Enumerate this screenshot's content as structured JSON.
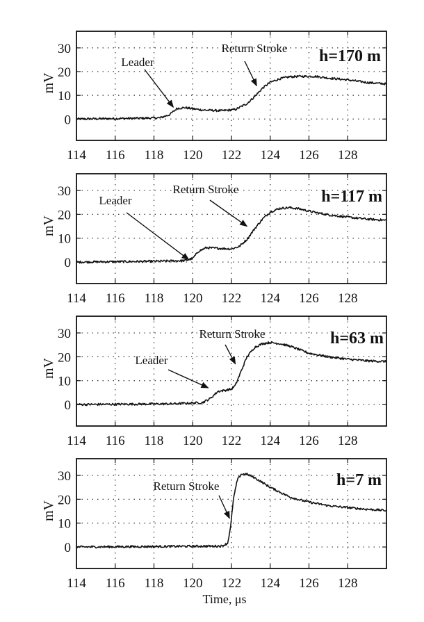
{
  "chart_data": [
    {
      "type": "line",
      "label": "h=170 m",
      "ylabel": "mV",
      "xlim": [
        114,
        130
      ],
      "ylim": [
        -9,
        37
      ],
      "x_ticks": [
        114,
        116,
        118,
        120,
        122,
        124,
        126,
        128
      ],
      "y_ticks": [
        0,
        10,
        20,
        30
      ],
      "grid": true,
      "series": [
        {
          "x": [
            114,
            117,
            118.3,
            118.8,
            119.2,
            119.6,
            120.5,
            121.5,
            122.2,
            122.8,
            123.2,
            123.6,
            124,
            124.5,
            125,
            125.5,
            126.3,
            127,
            128,
            129,
            130
          ],
          "y": [
            0,
            0.3,
            0.5,
            1.8,
            4.5,
            4.8,
            3.8,
            3.5,
            4,
            6.5,
            9.5,
            13,
            15.5,
            17,
            17.8,
            18,
            18,
            17.3,
            16.5,
            15.4,
            14.8
          ]
        }
      ],
      "annotations": [
        {
          "text": "Leader",
          "x": 119,
          "y": 5
        },
        {
          "text": "Return Stroke",
          "x": 123.3,
          "y": 14
        }
      ]
    },
    {
      "type": "line",
      "label": "h=117 m",
      "ylabel": "mV",
      "xlim": [
        114,
        130
      ],
      "ylim": [
        -9,
        37
      ],
      "x_ticks": [
        114,
        116,
        118,
        120,
        122,
        124,
        126,
        128
      ],
      "y_ticks": [
        0,
        10,
        20,
        30
      ],
      "grid": true,
      "series": [
        {
          "x": [
            114,
            118,
            119.6,
            120,
            120.3,
            120.7,
            121.2,
            122,
            122.4,
            122.8,
            123.2,
            123.6,
            124,
            124.5,
            125,
            125.5,
            126.2,
            127,
            128,
            129,
            130
          ],
          "y": [
            0,
            0.3,
            0.6,
            1.5,
            4.5,
            6,
            5.8,
            5.5,
            6.5,
            9.5,
            14,
            18,
            21,
            22.5,
            22.8,
            22.3,
            21,
            19.8,
            18.8,
            18,
            17.5
          ]
        }
      ],
      "annotations": [
        {
          "text": "Leader",
          "x": 119.8,
          "y": 1
        },
        {
          "text": "Return Stroke",
          "x": 122.8,
          "y": 15
        }
      ]
    },
    {
      "type": "line",
      "label": "h=63 m",
      "ylabel": "mV",
      "xlim": [
        114,
        130
      ],
      "ylim": [
        -9,
        37
      ],
      "x_ticks": [
        114,
        116,
        118,
        120,
        122,
        124,
        126,
        128
      ],
      "y_ticks": [
        0,
        10,
        20,
        30
      ],
      "grid": true,
      "series": [
        {
          "x": [
            114,
            119,
            120.5,
            120.9,
            121.3,
            121.7,
            122,
            122.2,
            122.5,
            122.8,
            123.2,
            123.6,
            124,
            124.5,
            125,
            125.5,
            126,
            127,
            128,
            129,
            130
          ],
          "y": [
            0,
            0.3,
            0.8,
            2.5,
            5.5,
            6,
            6.5,
            8,
            14,
            20,
            24,
            25.5,
            26,
            25.5,
            24.5,
            23,
            21.5,
            20,
            19,
            18.3,
            18
          ]
        }
      ],
      "annotations": [
        {
          "text": "Leader",
          "x": 120.8,
          "y": 7
        },
        {
          "text": "Return Stroke",
          "x": 122.2,
          "y": 17
        }
      ]
    },
    {
      "type": "line",
      "label": "h=7 m",
      "ylabel": "mV",
      "xlabel": "Time, μs",
      "xlim": [
        114,
        130
      ],
      "ylim": [
        -9,
        37
      ],
      "x_ticks": [
        114,
        116,
        118,
        120,
        122,
        124,
        126,
        128
      ],
      "y_ticks": [
        0,
        10,
        20,
        30
      ],
      "grid": true,
      "series": [
        {
          "x": [
            114,
            118,
            121.5,
            121.8,
            121.95,
            122.1,
            122.3,
            122.5,
            122.8,
            123.2,
            123.6,
            124,
            124.5,
            125,
            125.5,
            126,
            127,
            128,
            129,
            130
          ],
          "y": [
            0,
            0.2,
            0.4,
            1.5,
            8,
            20,
            28,
            30.5,
            30.5,
            29,
            27,
            25,
            23,
            21,
            19.8,
            18.8,
            17.3,
            16.5,
            15.8,
            15.3
          ]
        }
      ],
      "annotations": [
        {
          "text": "Return Stroke",
          "x": 121.9,
          "y": 12
        }
      ]
    }
  ]
}
